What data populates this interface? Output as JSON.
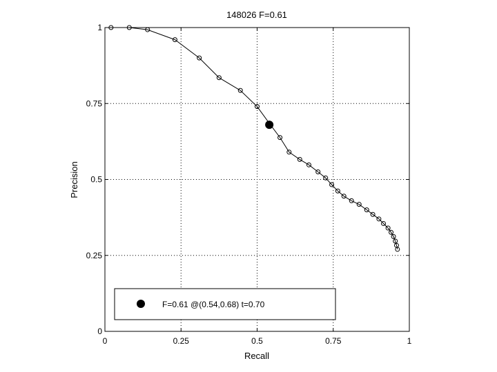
{
  "chart_data": {
    "type": "line",
    "title": "148026 F=0.61",
    "xlabel": "Recall",
    "ylabel": "Precision",
    "xlim": [
      0,
      1
    ],
    "ylim": [
      0,
      1
    ],
    "xticks": [
      0,
      0.25,
      0.5,
      0.75,
      1
    ],
    "xtick_labels": [
      "0",
      "0.25",
      "0.5",
      "0.75",
      "1"
    ],
    "yticks": [
      0,
      0.25,
      0.5,
      0.75,
      1
    ],
    "ytick_labels": [
      "0",
      "0.25",
      "0.5",
      "0.75",
      "1"
    ],
    "grid": true,
    "series": [
      {
        "marker": "open-circle",
        "x": [
          0.02,
          0.08,
          0.14,
          0.23,
          0.31,
          0.375,
          0.445,
          0.5,
          0.54,
          0.575,
          0.605,
          0.64,
          0.67,
          0.7,
          0.725,
          0.745,
          0.765,
          0.785,
          0.81,
          0.835,
          0.86,
          0.88,
          0.9,
          0.915,
          0.93,
          0.94,
          0.948,
          0.954,
          0.958,
          0.961
        ],
        "y": [
          1.0,
          1.0,
          0.993,
          0.96,
          0.9,
          0.835,
          0.793,
          0.74,
          0.685,
          0.638,
          0.59,
          0.566,
          0.548,
          0.525,
          0.505,
          0.483,
          0.462,
          0.445,
          0.43,
          0.418,
          0.4,
          0.385,
          0.37,
          0.355,
          0.34,
          0.326,
          0.312,
          0.297,
          0.283,
          0.27
        ]
      }
    ],
    "highlight": {
      "x": 0.54,
      "y": 0.68,
      "marker": "filled-circle"
    },
    "legend": {
      "placement": "bottom-left",
      "label": "F=0.61 @(0.54,0.68) t=0.70"
    }
  }
}
